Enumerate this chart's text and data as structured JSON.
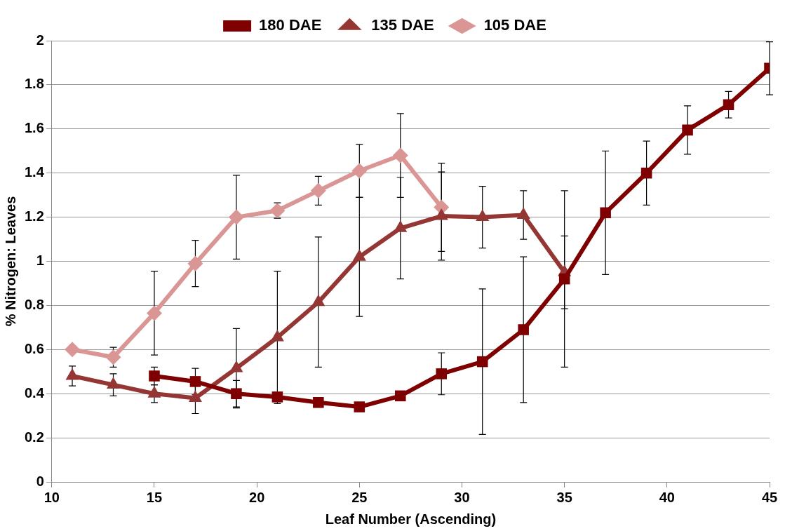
{
  "chart_data": {
    "type": "line",
    "xlabel": "Leaf Number (Ascending)",
    "ylabel": "% Nitrogen: Leaves",
    "xlim": [
      10,
      45
    ],
    "xticks": [
      10,
      15,
      20,
      25,
      30,
      35,
      40,
      45
    ],
    "ylim": [
      0,
      2
    ],
    "yticks": [
      0,
      0.2,
      0.4,
      0.6,
      0.8,
      1,
      1.2,
      1.4,
      1.6,
      1.8,
      2
    ],
    "grid": "y",
    "legend": "top",
    "line_style": "solid",
    "series": [
      {
        "name": "180 DAE",
        "color": "#7f0000",
        "marker": "square",
        "x": [
          15,
          17,
          19,
          21,
          23,
          25,
          27,
          29,
          31,
          33,
          35,
          37,
          39,
          41,
          43,
          45
        ],
        "values": [
          0.48,
          0.455,
          0.4,
          0.385,
          0.36,
          0.34,
          0.39,
          0.49,
          0.545,
          0.69,
          0.92,
          1.22,
          1.4,
          1.595,
          1.71,
          1.875
        ],
        "errors": [
          0.04,
          0.06,
          0.06,
          null,
          null,
          null,
          null,
          0.095,
          0.33,
          0.33,
          0.4,
          0.28,
          0.145,
          0.11,
          0.06,
          0.12
        ]
      },
      {
        "name": "135 DAE",
        "color": "#943634",
        "marker": "triangle",
        "x": [
          11,
          13,
          15,
          17,
          19,
          21,
          23,
          25,
          27,
          29,
          31,
          33,
          35
        ],
        "values": [
          0.48,
          0.44,
          0.4,
          0.38,
          0.515,
          0.655,
          0.815,
          1.02,
          1.15,
          1.205,
          1.2,
          1.21,
          0.95
        ],
        "errors": [
          0.045,
          0.05,
          0.04,
          0.07,
          0.18,
          0.3,
          0.295,
          0.27,
          0.23,
          0.2,
          0.14,
          0.11,
          0.165
        ]
      },
      {
        "name": "105 DAE",
        "color": "#d99694",
        "marker": "diamond",
        "x": [
          11,
          13,
          15,
          17,
          19,
          21,
          23,
          25,
          27,
          29
        ],
        "values": [
          0.6,
          0.565,
          0.765,
          0.99,
          1.2,
          1.23,
          1.32,
          1.41,
          1.48,
          1.245
        ],
        "errors": [
          null,
          0.045,
          0.19,
          0.105,
          0.19,
          0.035,
          0.065,
          0.12,
          0.19,
          0.2
        ]
      }
    ]
  }
}
